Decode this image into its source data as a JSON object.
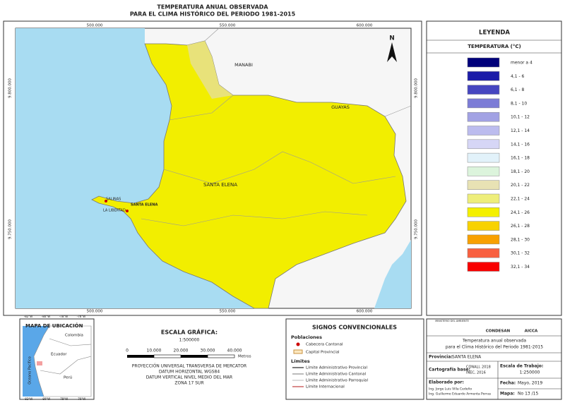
{
  "title": {
    "line1": "TEMPERATURA ANUAL OBSERVADA",
    "line2": "PARA EL CLIMA HISTÓRICO DEL PERIODO 1981-2015"
  },
  "map": {
    "easting_top": [
      "500.000",
      "550.000",
      "600.000"
    ],
    "easting_bottom": [
      "500.000",
      "550.000",
      "600.000"
    ],
    "northing_left": [
      "9.800.000",
      "9.750.000"
    ],
    "northing_right": [
      "9.800.000",
      "9.750.000"
    ],
    "north": "N",
    "labels": {
      "manabi": "MANABI",
      "guayas": "GUAYAS",
      "province": "SANTA ELENA",
      "salinas": "SALINAS",
      "la_libertad": "LA LIBERTAD",
      "santa_elena_city": "SANTA ELENA"
    }
  },
  "legend": {
    "title": "LEYENDA",
    "subtitle": "TEMPERATURA (°C)",
    "items": [
      {
        "label": "menor a 4",
        "color": "#00007a"
      },
      {
        "label": "4,1 - 6",
        "color": "#1c1ca8"
      },
      {
        "label": "6,1 - 8",
        "color": "#4646c0"
      },
      {
        "label": "8,1 - 10",
        "color": "#7c7cd6"
      },
      {
        "label": "10,1 - 12",
        "color": "#a2a2e4"
      },
      {
        "label": "12,1 - 14",
        "color": "#bcbcee"
      },
      {
        "label": "14,1 - 16",
        "color": "#d6d6f6"
      },
      {
        "label": "16,1 - 18",
        "color": "#e2f2fa"
      },
      {
        "label": "18,1 - 20",
        "color": "#dcf4dc"
      },
      {
        "label": "20,1 - 22",
        "color": "#e8e2b4"
      },
      {
        "label": "22,1 - 24",
        "color": "#eeee7a"
      },
      {
        "label": "24,1 - 26",
        "color": "#f4f000"
      },
      {
        "label": "26,1 - 28",
        "color": "#f8d200"
      },
      {
        "label": "28,1 - 30",
        "color": "#f8a000"
      },
      {
        "label": "30,1 - 32",
        "color": "#f86040"
      },
      {
        "label": "32,1 - 34",
        "color": "#f80000"
      }
    ]
  },
  "location_map": {
    "title": "MAPA DE UBICACIÓN",
    "countries": [
      "Colombia",
      "Ecuador",
      "Perú"
    ],
    "ocean": "Oceano Pacífico",
    "lon_top": [
      "-82°W",
      "-80°W",
      "-78°W",
      "-76°W"
    ],
    "lon_bottom": [
      "-82°W",
      "-80°W",
      "-78°W",
      "-76°W"
    ]
  },
  "scale": {
    "title": "ESCALA GRÁFICA:",
    "ratio": "1:500000",
    "ticks": [
      "0",
      "10.000",
      "20.000",
      "30.000",
      "40.000"
    ],
    "unit": "Metros",
    "projection": [
      "PROYECCIÓN UNIVERSAL TRANSVERSA DE MERCATOR",
      "DATUM HORIZONTAL WGS84",
      "DATUM VERTICAL NIVEL MEDIO DEL MAR",
      "ZONA 17 SUR"
    ]
  },
  "signs": {
    "title": "SIGNOS CONVENCIONALES",
    "populations": "Poblaciones",
    "cabecera": "Cabecera Cantonal",
    "capital": "Capital Provincial",
    "limits": "Límites",
    "provincial": "Límite Administrativo Provincial",
    "cantonal": "Límite Administrativo Cantonal",
    "parroquial": "Límite Administrativo Parroquial",
    "international": "Límite Internacional"
  },
  "info": {
    "logos": [
      "MINISTERIO DEL AMBIENTE",
      "CONDESAN",
      "AICCA"
    ],
    "description": [
      "Temperatura anual observada",
      "para el Clima Histórico del Periodo 1981-2015"
    ],
    "province_label": "Provincia:",
    "province": "SANTA ELENA",
    "base_label": "Cartografía base:",
    "base": [
      "CONALI, 2018",
      "INEC, 2016"
    ],
    "work_scale_label": "Escala de Trabajo:",
    "work_scale": "1:250000",
    "author_label": "Elaborado por:",
    "authors": [
      "Ing. Jorge Luis Villa Cedeño",
      "Ing. Guillermo Eduardo Armenta Porras"
    ],
    "date_label": "Fecha:",
    "date": "Mayo, 2019",
    "map_label": "Mapa:",
    "map_number": "No 13 /15"
  }
}
